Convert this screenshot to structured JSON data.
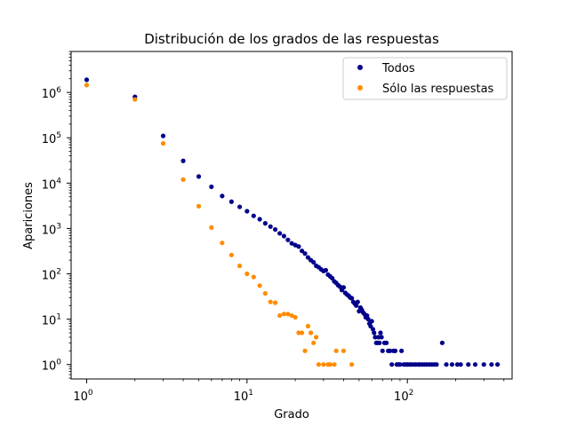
{
  "chart_data": {
    "type": "scatter",
    "title": "Distribución de los grados de las respuestas",
    "xlabel": "Grado",
    "ylabel": "Apariciones",
    "xscale": "log",
    "yscale": "log",
    "xlim": [
      0.8,
      450
    ],
    "ylim": [
      0.48,
      8000000
    ],
    "x_ticks": [
      {
        "value": 1,
        "base": "10",
        "exp": "0"
      },
      {
        "value": 10,
        "base": "10",
        "exp": "1"
      },
      {
        "value": 100,
        "base": "10",
        "exp": "2"
      }
    ],
    "y_ticks": [
      {
        "value": 1,
        "base": "10",
        "exp": "0"
      },
      {
        "value": 10,
        "base": "10",
        "exp": "1"
      },
      {
        "value": 100,
        "base": "10",
        "exp": "2"
      },
      {
        "value": 1000,
        "base": "10",
        "exp": "3"
      },
      {
        "value": 10000,
        "base": "10",
        "exp": "4"
      },
      {
        "value": 100000,
        "base": "10",
        "exp": "5"
      },
      {
        "value": 1000000,
        "base": "10",
        "exp": "6"
      }
    ],
    "grid": false,
    "legend_position": "top-right",
    "series": [
      {
        "name": "Todos",
        "color": "#00008b",
        "points": [
          [
            1,
            1900000
          ],
          [
            2,
            800000
          ],
          [
            3,
            110000
          ],
          [
            4,
            31000
          ],
          [
            5,
            14000
          ],
          [
            6,
            8300
          ],
          [
            7,
            5200
          ],
          [
            8,
            3900
          ],
          [
            9,
            3000
          ],
          [
            10,
            2400
          ],
          [
            11,
            1900
          ],
          [
            12,
            1600
          ],
          [
            13,
            1300
          ],
          [
            14,
            1100
          ],
          [
            15,
            950
          ],
          [
            16,
            780
          ],
          [
            17,
            680
          ],
          [
            18,
            560
          ],
          [
            19,
            470
          ],
          [
            20,
            430
          ],
          [
            21,
            400
          ],
          [
            22,
            320
          ],
          [
            23,
            280
          ],
          [
            24,
            230
          ],
          [
            25,
            200
          ],
          [
            26,
            180
          ],
          [
            27,
            150
          ],
          [
            28,
            140
          ],
          [
            29,
            125
          ],
          [
            30,
            115
          ],
          [
            31,
            120
          ],
          [
            32,
            96
          ],
          [
            33,
            88
          ],
          [
            34,
            80
          ],
          [
            35,
            68
          ],
          [
            36,
            63
          ],
          [
            37,
            56
          ],
          [
            38,
            52
          ],
          [
            39,
            44
          ],
          [
            40,
            50
          ],
          [
            41,
            38
          ],
          [
            42,
            35
          ],
          [
            43,
            33
          ],
          [
            44,
            30
          ],
          [
            45,
            29
          ],
          [
            46,
            24
          ],
          [
            47,
            22
          ],
          [
            48,
            20
          ],
          [
            49,
            24
          ],
          [
            50,
            15
          ],
          [
            51,
            18
          ],
          [
            52,
            16
          ],
          [
            53,
            14
          ],
          [
            54,
            13
          ],
          [
            55,
            11
          ],
          [
            56,
            12
          ],
          [
            57,
            10
          ],
          [
            58,
            8
          ],
          [
            59,
            7
          ],
          [
            60,
            9
          ],
          [
            61,
            6
          ],
          [
            62,
            5
          ],
          [
            63,
            4
          ],
          [
            64,
            3
          ],
          [
            65,
            3
          ],
          [
            66,
            4
          ],
          [
            67,
            3
          ],
          [
            68,
            5
          ],
          [
            69,
            4
          ],
          [
            70,
            2
          ],
          [
            72,
            3
          ],
          [
            74,
            3
          ],
          [
            76,
            2
          ],
          [
            78,
            2
          ],
          [
            80,
            1
          ],
          [
            82,
            2
          ],
          [
            84,
            2
          ],
          [
            86,
            1
          ],
          [
            88,
            1
          ],
          [
            90,
            1
          ],
          [
            92,
            2
          ],
          [
            95,
            1
          ],
          [
            98,
            1
          ],
          [
            100,
            1
          ],
          [
            103,
            1
          ],
          [
            106,
            1
          ],
          [
            110,
            1
          ],
          [
            113,
            1
          ],
          [
            117,
            1
          ],
          [
            120,
            1
          ],
          [
            124,
            1
          ],
          [
            128,
            1
          ],
          [
            132,
            1
          ],
          [
            137,
            1
          ],
          [
            142,
            1
          ],
          [
            147,
            1
          ],
          [
            152,
            1
          ],
          [
            165,
            3
          ],
          [
            175,
            1
          ],
          [
            190,
            1
          ],
          [
            205,
            1
          ],
          [
            215,
            1
          ],
          [
            240,
            1
          ],
          [
            265,
            1
          ],
          [
            300,
            1
          ],
          [
            335,
            1
          ],
          [
            365,
            1
          ]
        ]
      },
      {
        "name": "Sólo las respuestas",
        "color": "#ff8c00",
        "points": [
          [
            1,
            1450000
          ],
          [
            2,
            700000
          ],
          [
            3,
            75000
          ],
          [
            4,
            12000
          ],
          [
            5,
            3100
          ],
          [
            6,
            1050
          ],
          [
            7,
            480
          ],
          [
            8,
            260
          ],
          [
            9,
            150
          ],
          [
            10,
            100
          ],
          [
            11,
            85
          ],
          [
            12,
            55
          ],
          [
            13,
            37
          ],
          [
            14,
            24
          ],
          [
            15,
            23
          ],
          [
            16,
            12
          ],
          [
            17,
            13
          ],
          [
            18,
            13
          ],
          [
            19,
            12
          ],
          [
            20,
            11
          ],
          [
            21,
            5
          ],
          [
            22,
            5
          ],
          [
            23,
            2
          ],
          [
            24,
            7
          ],
          [
            25,
            5
          ],
          [
            26,
            3
          ],
          [
            27,
            4
          ],
          [
            28,
            1
          ],
          [
            30,
            1
          ],
          [
            32,
            1
          ],
          [
            33,
            1
          ],
          [
            35,
            1
          ],
          [
            36,
            2
          ],
          [
            40,
            2
          ],
          [
            45,
            1
          ]
        ]
      }
    ]
  }
}
